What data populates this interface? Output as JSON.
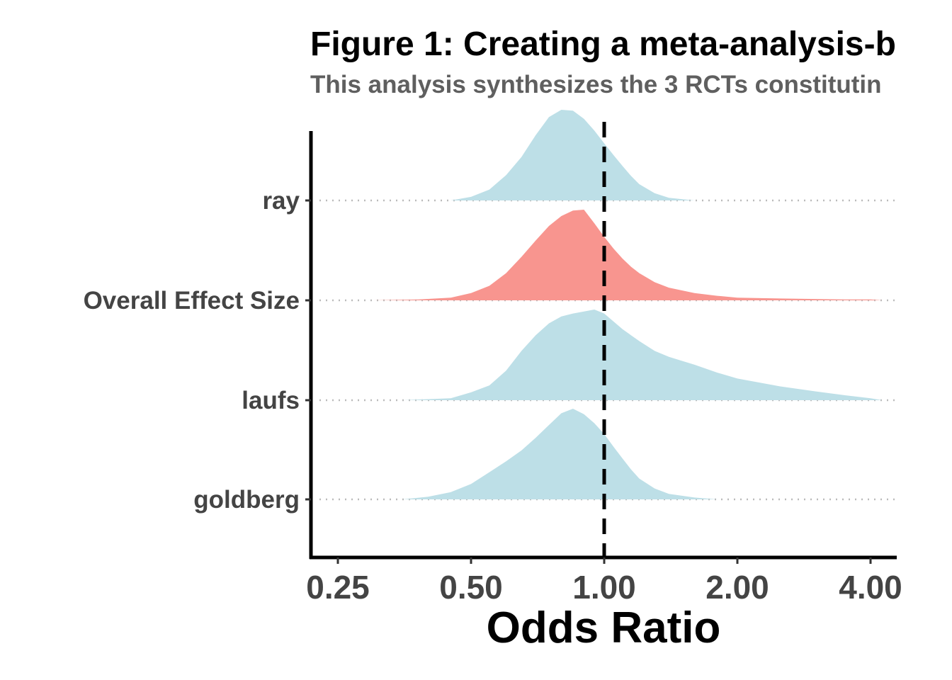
{
  "chart_data": {
    "type": "area",
    "subtype": "ridgeline-density",
    "title": "Figure 1: Creating a meta-analysis-b",
    "subtitle": "This analysis synthesizes the 3 RCTs constitutin",
    "xlabel": "Odds Ratio",
    "ylabel": "",
    "x_scale": "log2",
    "xlim": [
      0.23,
      4.25
    ],
    "x_ticks": [
      0.25,
      0.5,
      1.0,
      2.0,
      4.0
    ],
    "x_tick_labels": [
      "0.25",
      "0.50",
      "1.00",
      "2.00",
      "4.00"
    ],
    "reference_line": {
      "x": 1.0,
      "style": "dashed",
      "color": "#000000"
    },
    "grid": false,
    "legend": "none",
    "colors": {
      "study": "#bddfe7",
      "overall": "#f8958f",
      "baseline": "#bbbbbb"
    },
    "categories": [
      "ray",
      "Overall Effect Size",
      "laufs",
      "goldberg"
    ],
    "series": [
      {
        "name": "ray",
        "kind": "study",
        "x": [
          0.25,
          0.45,
          0.5,
          0.55,
          0.6,
          0.65,
          0.7,
          0.75,
          0.8,
          0.85,
          0.9,
          0.95,
          1.0,
          1.05,
          1.1,
          1.15,
          1.2,
          1.3,
          1.4,
          1.6,
          2.0,
          4.25
        ],
        "density": [
          0,
          0.0,
          0.04,
          0.12,
          0.28,
          0.48,
          0.72,
          0.92,
          1.0,
          0.99,
          0.9,
          0.77,
          0.63,
          0.5,
          0.38,
          0.27,
          0.18,
          0.08,
          0.03,
          0.0,
          0,
          0
        ]
      },
      {
        "name": "Overall Effect Size",
        "kind": "overall",
        "x": [
          0.25,
          0.3,
          0.38,
          0.45,
          0.5,
          0.55,
          0.6,
          0.65,
          0.7,
          0.75,
          0.8,
          0.85,
          0.9,
          0.95,
          1.0,
          1.05,
          1.1,
          1.15,
          1.2,
          1.3,
          1.4,
          1.6,
          1.8,
          2.0,
          2.5,
          3.0,
          3.5,
          4.0,
          4.25
        ],
        "density": [
          0,
          0.0,
          0.01,
          0.03,
          0.08,
          0.16,
          0.3,
          0.48,
          0.66,
          0.82,
          0.93,
          0.99,
          1.0,
          0.85,
          0.7,
          0.57,
          0.46,
          0.37,
          0.3,
          0.2,
          0.14,
          0.08,
          0.05,
          0.03,
          0.02,
          0.015,
          0.01,
          0.01,
          0.0
        ]
      },
      {
        "name": "laufs",
        "kind": "study",
        "x": [
          0.25,
          0.35,
          0.45,
          0.5,
          0.55,
          0.6,
          0.65,
          0.7,
          0.75,
          0.8,
          0.85,
          0.9,
          0.95,
          1.0,
          1.1,
          1.2,
          1.3,
          1.4,
          1.6,
          1.8,
          2.0,
          2.5,
          3.0,
          3.5,
          4.0,
          4.25
        ],
        "density": [
          0,
          0.0,
          0.02,
          0.08,
          0.15,
          0.3,
          0.5,
          0.66,
          0.78,
          0.85,
          0.88,
          0.9,
          0.92,
          0.88,
          0.72,
          0.6,
          0.5,
          0.44,
          0.36,
          0.28,
          0.22,
          0.14,
          0.09,
          0.05,
          0.02,
          0.0
        ]
      },
      {
        "name": "goldberg",
        "kind": "study",
        "x": [
          0.25,
          0.35,
          0.4,
          0.45,
          0.5,
          0.55,
          0.6,
          0.65,
          0.7,
          0.75,
          0.8,
          0.85,
          0.9,
          0.95,
          1.0,
          1.05,
          1.1,
          1.15,
          1.2,
          1.3,
          1.4,
          1.6,
          1.8,
          4.25
        ],
        "density": [
          0,
          0.0,
          0.03,
          0.08,
          0.17,
          0.3,
          0.42,
          0.54,
          0.68,
          0.82,
          0.95,
          1.0,
          0.94,
          0.84,
          0.72,
          0.58,
          0.45,
          0.33,
          0.23,
          0.12,
          0.06,
          0.02,
          0.0,
          0
        ]
      }
    ]
  }
}
